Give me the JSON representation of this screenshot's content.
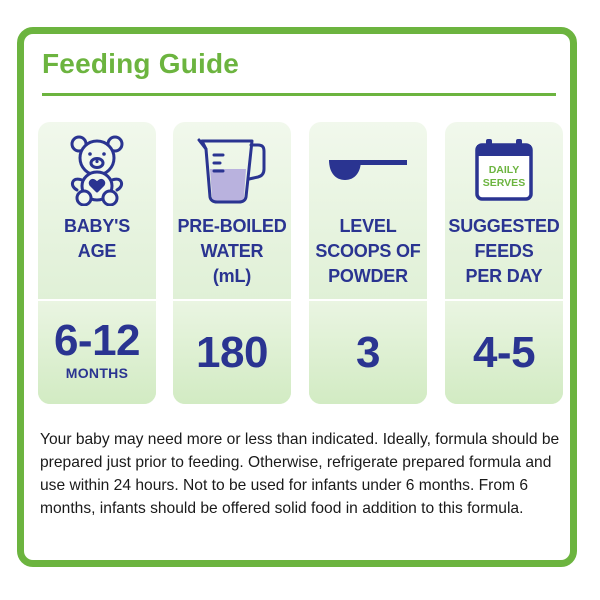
{
  "title": "Feeding Guide",
  "columns": [
    {
      "icon": "teddy-bear-icon",
      "heading_lines": [
        "BABY'S",
        "AGE"
      ],
      "value": "6-12",
      "unit": "MONTHS"
    },
    {
      "icon": "measuring-jug-icon",
      "heading_lines": [
        "PRE-BOILED",
        "WATER",
        "(mL)"
      ],
      "value": "180"
    },
    {
      "icon": "scoop-icon",
      "heading_lines": [
        "LEVEL",
        "SCOOPS OF",
        "POWDER"
      ],
      "value": "3"
    },
    {
      "icon": "calendar-icon",
      "icon_text": [
        "DAILY",
        "SERVES"
      ],
      "heading_lines": [
        "SUGGESTED",
        "FEEDS",
        "PER DAY"
      ],
      "value": "4-5"
    }
  ],
  "note": "Your baby may need more or less than indicated. Ideally, formula should be prepared just prior to feeding. Otherwise, refrigerate prepared formula and use within 24 hours. Not to be used for infants under 6 months. From 6 months, infants should be offered solid food in addition to this formula.",
  "colors": {
    "green": "#6cb43f",
    "navy": "#2a3491",
    "panel": "#d6ecca"
  }
}
